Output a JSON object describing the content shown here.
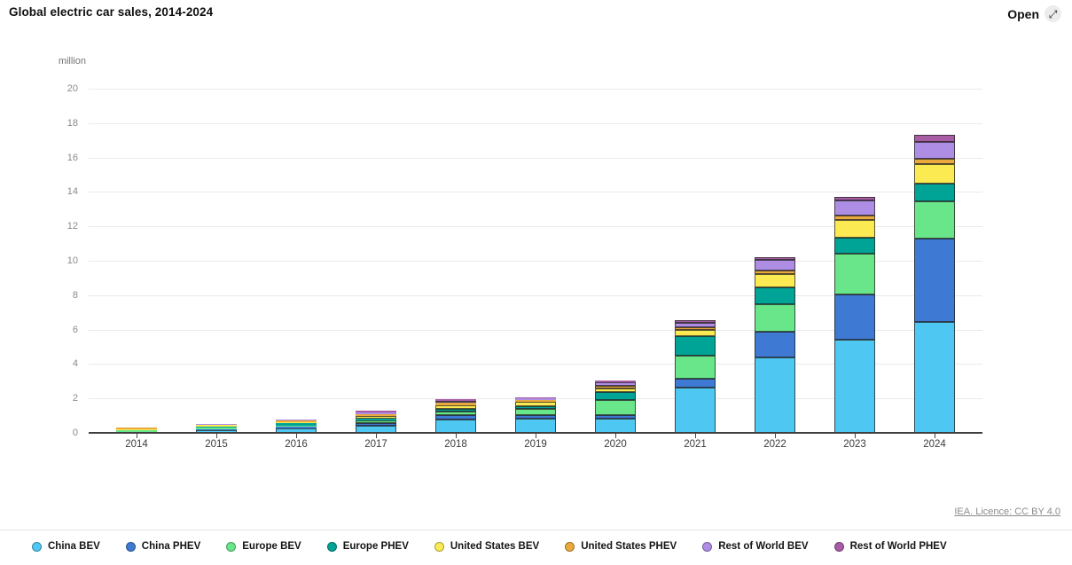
{
  "header": {
    "title": "Global electric car sales, 2014-2024",
    "open_label": "Open",
    "open_icon": "⤢"
  },
  "footer": {
    "license_text": "IEA. Licence: CC BY 4.0"
  },
  "chart_data": {
    "type": "bar",
    "stacked": true,
    "title": "Global electric car sales, 2014-2024",
    "unit_label": "million",
    "grid": true,
    "legend_position": "bottom",
    "ylim": [
      0,
      20
    ],
    "y_ticks": [
      0,
      2,
      4,
      6,
      8,
      10,
      12,
      14,
      16,
      18,
      20
    ],
    "categories": [
      "2014",
      "2015",
      "2016",
      "2017",
      "2018",
      "2019",
      "2020",
      "2021",
      "2022",
      "2023",
      "2024"
    ],
    "series": [
      {
        "name": "China BEV",
        "color": "#4EC8F3",
        "values": [
          0.04,
          0.15,
          0.26,
          0.4,
          0.78,
          0.8,
          0.81,
          2.65,
          4.4,
          5.4,
          6.45
        ]
      },
      {
        "name": "China PHEV",
        "color": "#3E79D3",
        "values": [
          0.03,
          0.06,
          0.08,
          0.18,
          0.24,
          0.22,
          0.21,
          0.5,
          1.5,
          2.65,
          4.85
        ]
      },
      {
        "name": "Europe BEV",
        "color": "#69E689",
        "values": [
          0.06,
          0.09,
          0.09,
          0.14,
          0.2,
          0.35,
          0.91,
          1.35,
          1.6,
          2.35,
          2.15
        ]
      },
      {
        "name": "Europe PHEV",
        "color": "#00A496",
        "values": [
          0.04,
          0.08,
          0.12,
          0.12,
          0.17,
          0.2,
          0.45,
          1.1,
          0.95,
          0.95,
          1.05
        ]
      },
      {
        "name": "United States BEV",
        "color": "#FBEA51",
        "values": [
          0.06,
          0.06,
          0.09,
          0.15,
          0.23,
          0.24,
          0.21,
          0.4,
          0.8,
          1.0,
          1.1
        ]
      },
      {
        "name": "United States PHEV",
        "color": "#E9A93D",
        "values": [
          0.06,
          0.05,
          0.07,
          0.1,
          0.12,
          0.08,
          0.14,
          0.15,
          0.2,
          0.3,
          0.35
        ]
      },
      {
        "name": "Rest of World BEV",
        "color": "#AE8DE4",
        "values": [
          0.02,
          0.03,
          0.05,
          0.1,
          0.13,
          0.12,
          0.2,
          0.25,
          0.6,
          0.85,
          0.95
        ]
      },
      {
        "name": "Rest of World PHEV",
        "color": "#A75CA5",
        "values": [
          0.01,
          0.02,
          0.03,
          0.08,
          0.1,
          0.08,
          0.12,
          0.15,
          0.15,
          0.2,
          0.4
        ]
      }
    ]
  }
}
